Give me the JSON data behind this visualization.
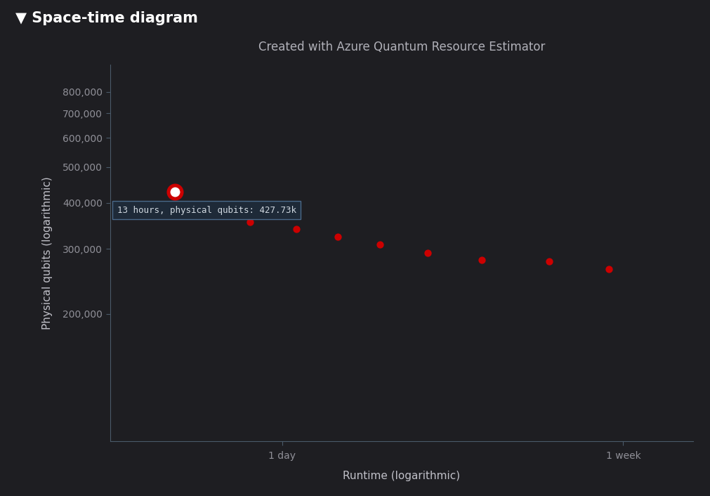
{
  "title": "Created with Azure Quantum Resource Estimator",
  "header": "▼ Space-time diagram",
  "xlabel": "Runtime (logarithmic)",
  "ylabel": "Physical qubits (logarithmic)",
  "background_color": "#1e1e22",
  "header_bg_color": "#2c2c30",
  "plot_bg_color": "#1e1e22",
  "text_color": "#c0c0c8",
  "title_color": "#b0b0b8",
  "axis_color": "#4a5a6a",
  "tick_color": "#909098",
  "dot_color": "#cc0000",
  "dot_highlight_outer": "#cc0000",
  "dot_highlight_inner": "#ffffff",
  "tooltip_bg": "#1e2a38",
  "tooltip_border": "#4a6a8a",
  "tooltip_text": "13 hours, physical qubits: 427.73k",
  "tooltip_text_color": "#d0d8e0",
  "x_hours": [
    13,
    20,
    26,
    33,
    42,
    55,
    75,
    110,
    155
  ],
  "y_qubits": [
    427730,
    355000,
    340000,
    323000,
    308000,
    293000,
    280000,
    278000,
    264000
  ],
  "highlighted_index": 0,
  "x_tick_hours": [
    24,
    168
  ],
  "x_tick_labels": [
    "1 day",
    "1 week"
  ],
  "y_ticks": [
    200000,
    300000,
    400000,
    500000,
    600000,
    700000,
    800000
  ],
  "y_tick_labels": [
    "200,000",
    "300,000",
    "400,000",
    "500,000",
    "600,000",
    "700,000",
    "800,000"
  ],
  "xlim_hours": [
    9,
    250
  ],
  "ylim": [
    90000,
    950000
  ],
  "figsize": [
    10.12,
    7.06
  ],
  "dpi": 100
}
